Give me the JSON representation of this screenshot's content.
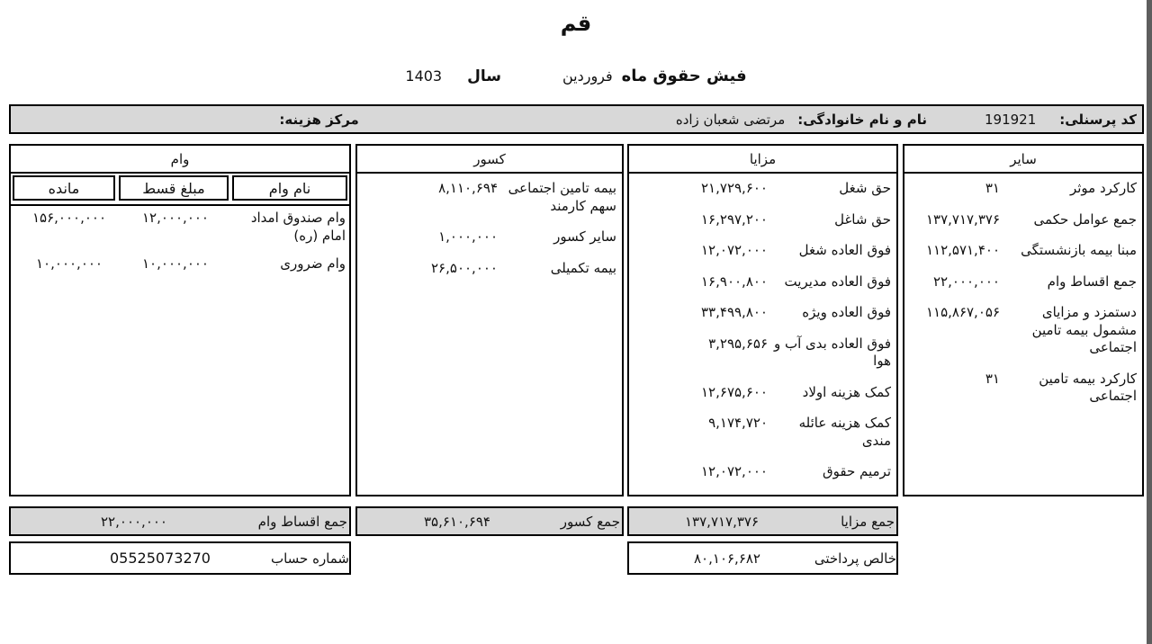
{
  "page": {
    "title": "قم",
    "subtitle_label": "فیش حقوق ماه",
    "month": "فروردین",
    "year_label": "سال",
    "year": "1403"
  },
  "header": {
    "personnel_code_label": "کد پرسنلی:",
    "personnel_code": "191921",
    "name_label": "نام و نام خانوادگی:",
    "name": "مرتضی شعبان زاده",
    "cost_center_label": "مرکز هزینه:",
    "cost_center": ""
  },
  "columns": {
    "other": {
      "title": "سایر",
      "rows": [
        {
          "label": "کارکرد موثر",
          "value": "۳۱"
        },
        {
          "label": "جمع عوامل حکمی",
          "value": "۱۳۷,۷۱۷,۳۷۶"
        },
        {
          "label": "مبنا بیمه بازنشستگی",
          "value": "۱۱۲,۵۷۱,۴۰۰"
        },
        {
          "label": "جمع اقساط وام",
          "value": "۲۲,۰۰۰,۰۰۰"
        },
        {
          "label": "دستمزد و مزایای مشمول بیمه تامین اجتماعی",
          "value": "۱۱۵,۸۶۷,۰۵۶"
        },
        {
          "label": "کارکرد بیمه تامین اجتماعی",
          "value": "۳۱"
        }
      ]
    },
    "benefits": {
      "title": "مزایا",
      "rows": [
        {
          "label": "حق شغل",
          "value": "۲۱,۷۲۹,۶۰۰"
        },
        {
          "label": "حق شاغل",
          "value": "۱۶,۲۹۷,۲۰۰"
        },
        {
          "label": "فوق العاده شغل",
          "value": "۱۲,۰۷۲,۰۰۰"
        },
        {
          "label": "فوق العاده مدیریت",
          "value": "۱۶,۹۰۰,۸۰۰"
        },
        {
          "label": "فوق العاده ویژه",
          "value": "۳۳,۴۹۹,۸۰۰"
        },
        {
          "label": "فوق العاده بدی آب و هوا",
          "value": "۳,۲۹۵,۶۵۶"
        },
        {
          "label": "کمک هزینه اولاد",
          "value": "۱۲,۶۷۵,۶۰۰"
        },
        {
          "label": "کمک هزینه عائله مندی",
          "value": "۹,۱۷۴,۷۲۰"
        },
        {
          "label": "ترمیم حقوق",
          "value": "۱۲,۰۷۲,۰۰۰"
        }
      ]
    },
    "deductions": {
      "title": "کسور",
      "rows": [
        {
          "label": "بیمه تامین اجتماعی سهم کارمند",
          "value": "۸,۱۱۰,۶۹۴"
        },
        {
          "label": "سایر کسور",
          "value": "۱,۰۰۰,۰۰۰"
        },
        {
          "label": "بیمه تکمیلی",
          "value": "۲۶,۵۰۰,۰۰۰"
        }
      ]
    },
    "loans": {
      "title": "وام",
      "headers": {
        "name": "نام وام",
        "installment": "مبلغ قسط",
        "balance": "مانده"
      },
      "rows": [
        {
          "name": "وام صندوق امداد امام (ره)",
          "installment": "۱۲,۰۰۰,۰۰۰",
          "balance": "۱۵۶,۰۰۰,۰۰۰"
        },
        {
          "name": "وام ضروری",
          "installment": "۱۰,۰۰۰,۰۰۰",
          "balance": "۱۰,۰۰۰,۰۰۰"
        }
      ]
    }
  },
  "totals": {
    "benefits_label": "جمع مزایا",
    "benefits_value": "۱۳۷,۷۱۷,۳۷۶",
    "deductions_label": "جمع کسور",
    "deductions_value": "۳۵,۶۱۰,۶۹۴",
    "loan_label": "جمع اقساط وام",
    "loan_value": "۲۲,۰۰۰,۰۰۰",
    "net_label": "خالص پرداختی",
    "net_value": "۸۰,۱۰۶,۶۸۲",
    "account_label": "شماره حساب",
    "account_value": "05525073270"
  }
}
